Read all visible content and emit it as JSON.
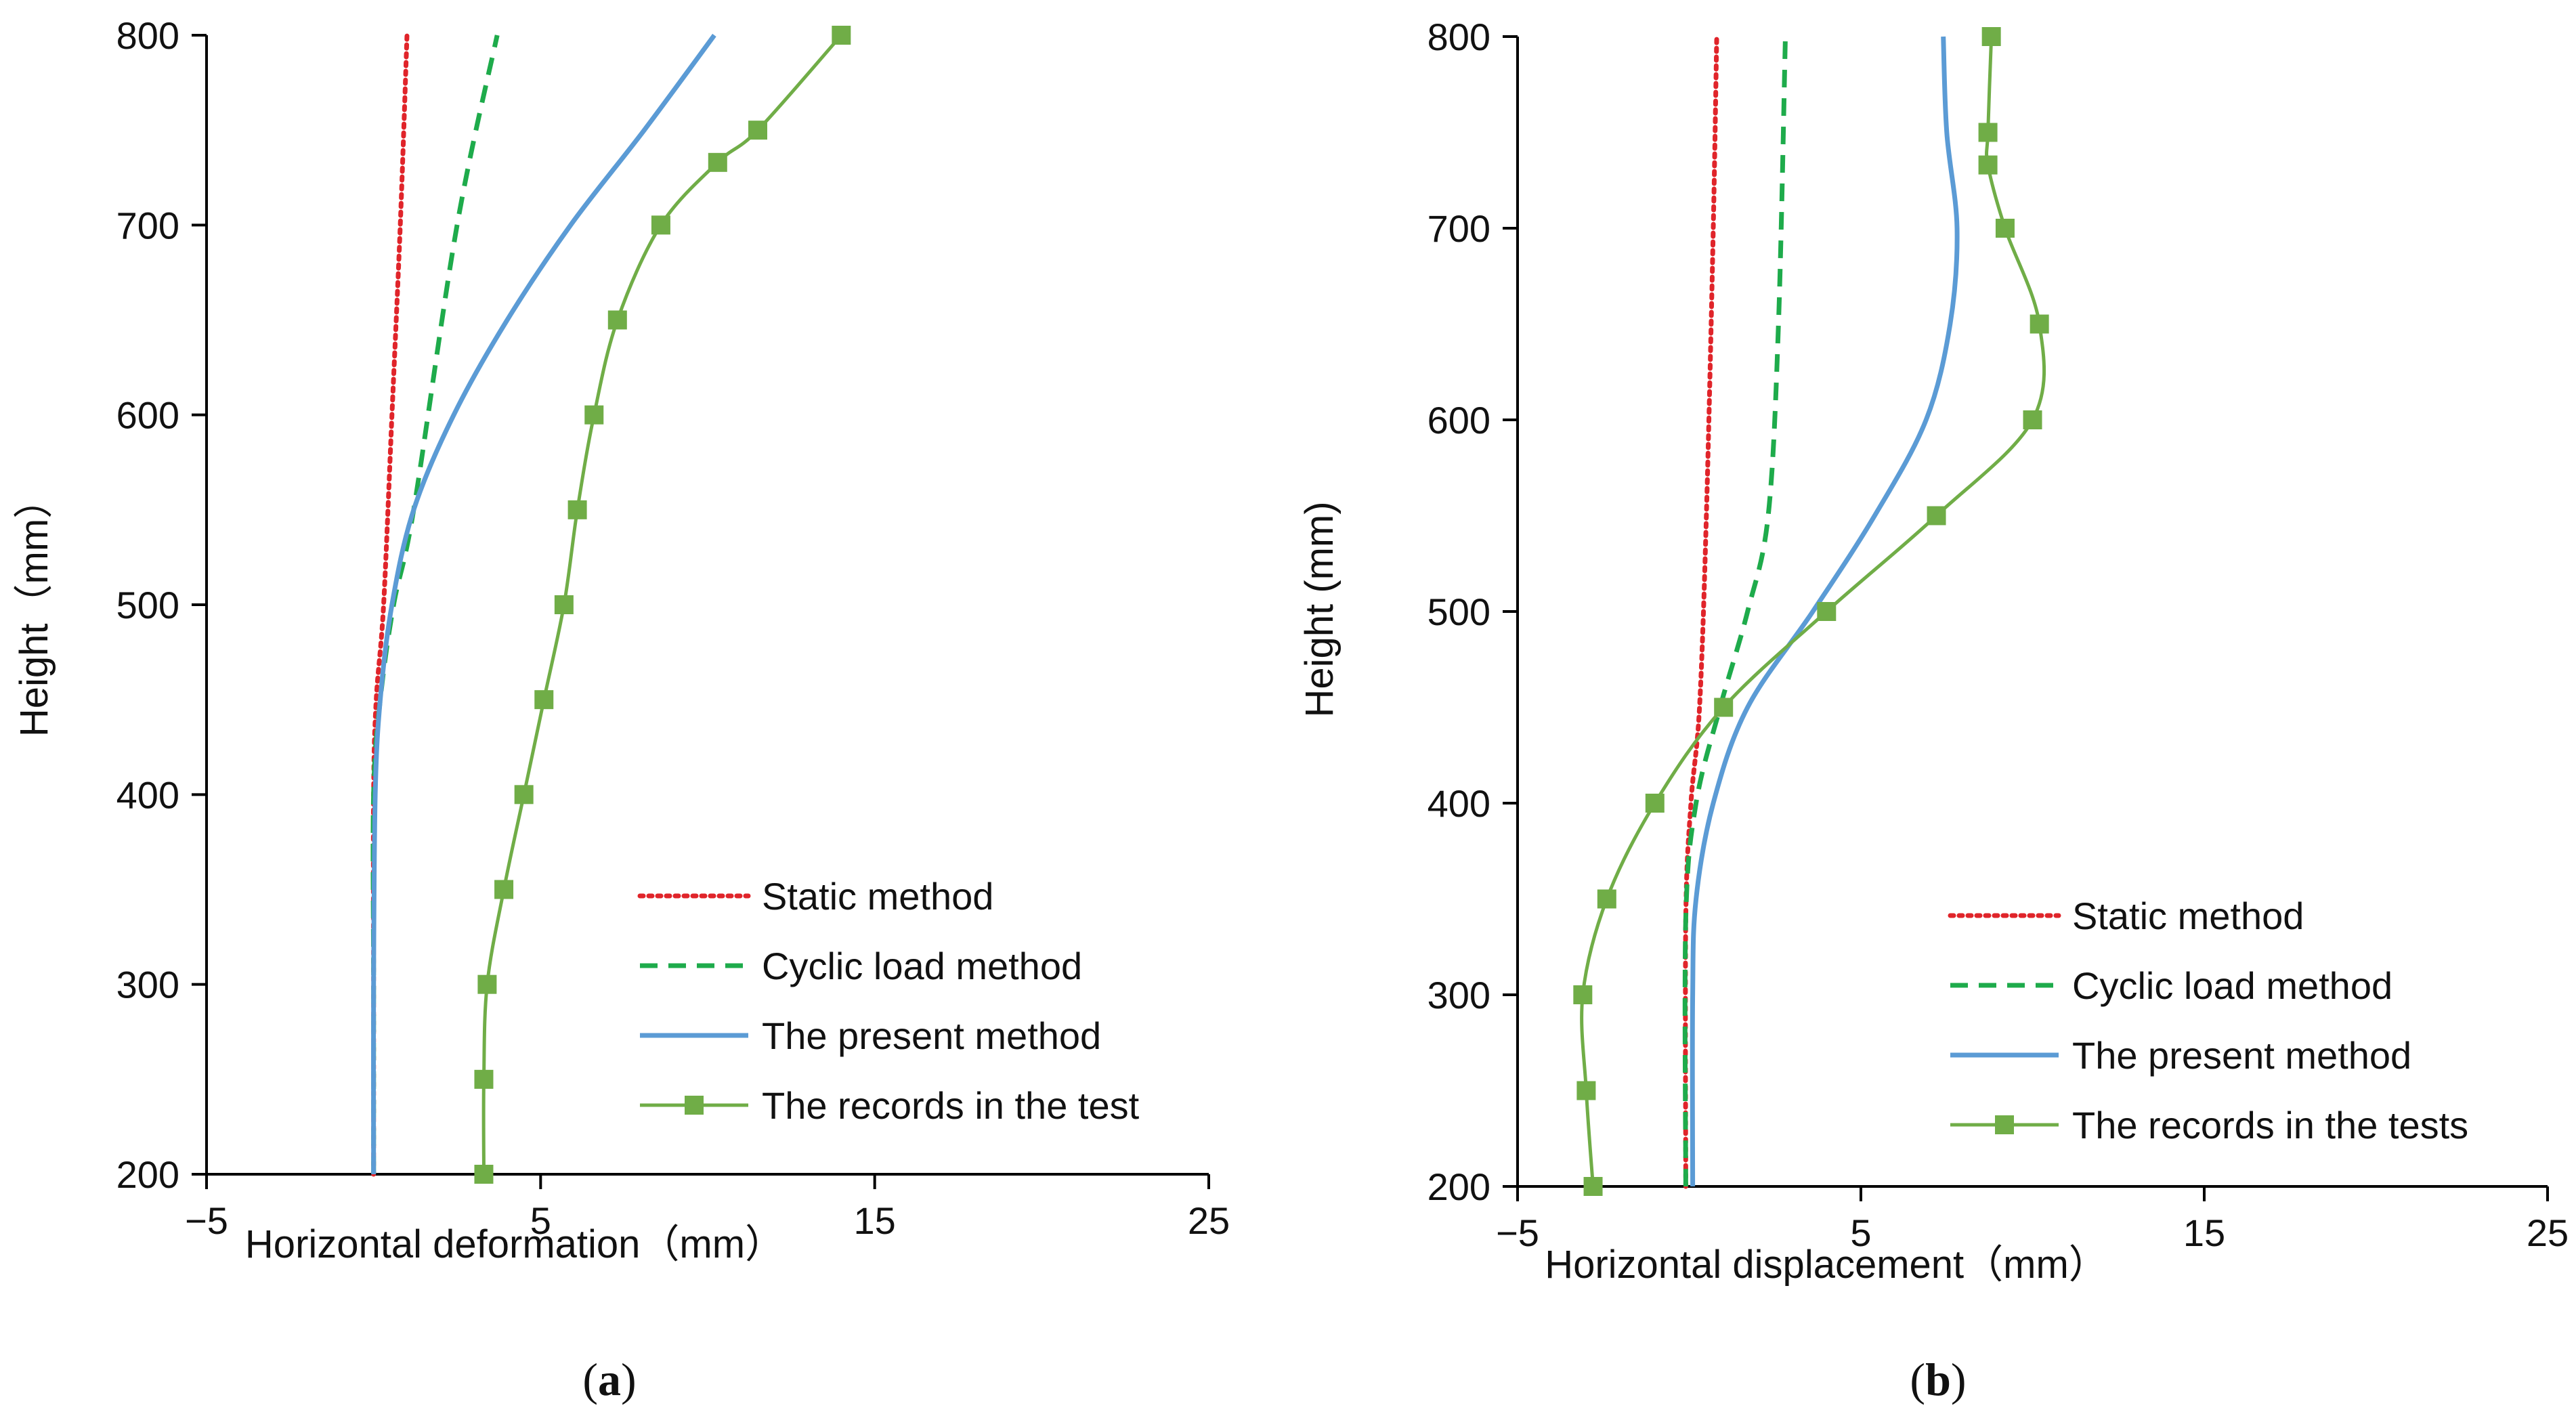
{
  "chart_data": [
    {
      "type": "line",
      "caption_letter": "a",
      "xlabel": "Horizontal deformation（mm）",
      "ylabel": "Height（mm）",
      "xlim": [
        -5,
        25
      ],
      "ylim": [
        200,
        800
      ],
      "x_ticks": [
        -5,
        5,
        15,
        25
      ],
      "x_tick_labels": [
        "−5",
        "5",
        "15",
        "25"
      ],
      "y_ticks": [
        200,
        300,
        400,
        500,
        600,
        700,
        800
      ],
      "y_tick_labels": [
        "200",
        "300",
        "400",
        "500",
        "600",
        "700",
        "800"
      ],
      "legend_position": "bottom-right",
      "series": [
        {
          "name": "Static method",
          "style": "dotted",
          "color": "#e0242a",
          "x": [
            0,
            0,
            0,
            0.08,
            0.3,
            0.55,
            0.8,
            1.0
          ],
          "y": [
            200,
            300,
            400,
            450,
            500,
            600,
            700,
            800
          ]
        },
        {
          "name": "Cyclic load method",
          "style": "dashed",
          "color": "#1eab4b",
          "x": [
            0,
            0,
            0,
            0.2,
            0.6,
            1.2,
            2.5,
            3.7
          ],
          "y": [
            200,
            300,
            400,
            450,
            500,
            550,
            700,
            800
          ]
        },
        {
          "name": "The present method",
          "style": "solid",
          "color": "#5b9bd5",
          "x": [
            0,
            0,
            0.05,
            0.2,
            0.55,
            1.2,
            2.4,
            4.0,
            5.9,
            8.1,
            10.2
          ],
          "y": [
            200,
            300,
            400,
            450,
            500,
            550,
            600,
            650,
            700,
            750,
            800
          ]
        },
        {
          "name": "The records in the test",
          "style": "solid-square",
          "color": "#70ad47",
          "x": [
            3.3,
            3.3,
            3.4,
            3.9,
            4.5,
            5.1,
            5.7,
            6.1,
            6.6,
            7.3,
            8.6,
            10.3,
            11.5,
            14.0
          ],
          "y": [
            200,
            250,
            300,
            350,
            400,
            450,
            500,
            550,
            600,
            650,
            700,
            733,
            750,
            800
          ]
        }
      ]
    },
    {
      "type": "line",
      "caption_letter": "b",
      "xlabel": "Horizontal displacement（mm）",
      "ylabel": "Height (mm)",
      "xlim": [
        -5,
        25
      ],
      "ylim": [
        200,
        800
      ],
      "x_ticks": [
        -5,
        5,
        15,
        25
      ],
      "x_tick_labels": [
        "−5",
        "5",
        "15",
        "25"
      ],
      "y_ticks": [
        200,
        300,
        400,
        500,
        600,
        700,
        800
      ],
      "y_tick_labels": [
        "200",
        "300",
        "400",
        "500",
        "600",
        "700",
        "800"
      ],
      "legend_position": "bottom-right",
      "series": [
        {
          "name": "Static method",
          "style": "dotted",
          "color": "#e0242a",
          "x": [
            -0.1,
            -0.1,
            0.05,
            0.3,
            0.5,
            0.7,
            0.8
          ],
          "y": [
            200,
            340,
            400,
            450,
            550,
            700,
            800
          ]
        },
        {
          "name": "Cyclic load method",
          "style": "dashed",
          "color": "#1eab4b",
          "x": [
            -0.1,
            -0.1,
            0.2,
            0.9,
            1.7,
            2.3,
            2.6,
            2.8
          ],
          "y": [
            200,
            340,
            400,
            450,
            500,
            550,
            650,
            800
          ]
        },
        {
          "name": "The present method",
          "style": "solid",
          "color": "#5b9bd5",
          "x": [
            0.1,
            0.1,
            0.2,
            0.7,
            1.7,
            3.6,
            5.4,
            6.9,
            7.6,
            7.8,
            7.5,
            7.4
          ],
          "y": [
            200,
            300,
            350,
            400,
            450,
            500,
            550,
            600,
            650,
            700,
            750,
            800
          ]
        },
        {
          "name": "The records in the tests",
          "style": "solid-square",
          "color": "#70ad47",
          "x": [
            -2.8,
            -3.0,
            -3.1,
            -2.4,
            -1.0,
            1.0,
            4.0,
            7.2,
            10.0,
            10.2,
            9.2,
            8.7,
            8.7,
            8.8
          ],
          "y": [
            200,
            250,
            300,
            350,
            400,
            450,
            500,
            550,
            600,
            650,
            700,
            733,
            750,
            800
          ]
        }
      ]
    }
  ]
}
